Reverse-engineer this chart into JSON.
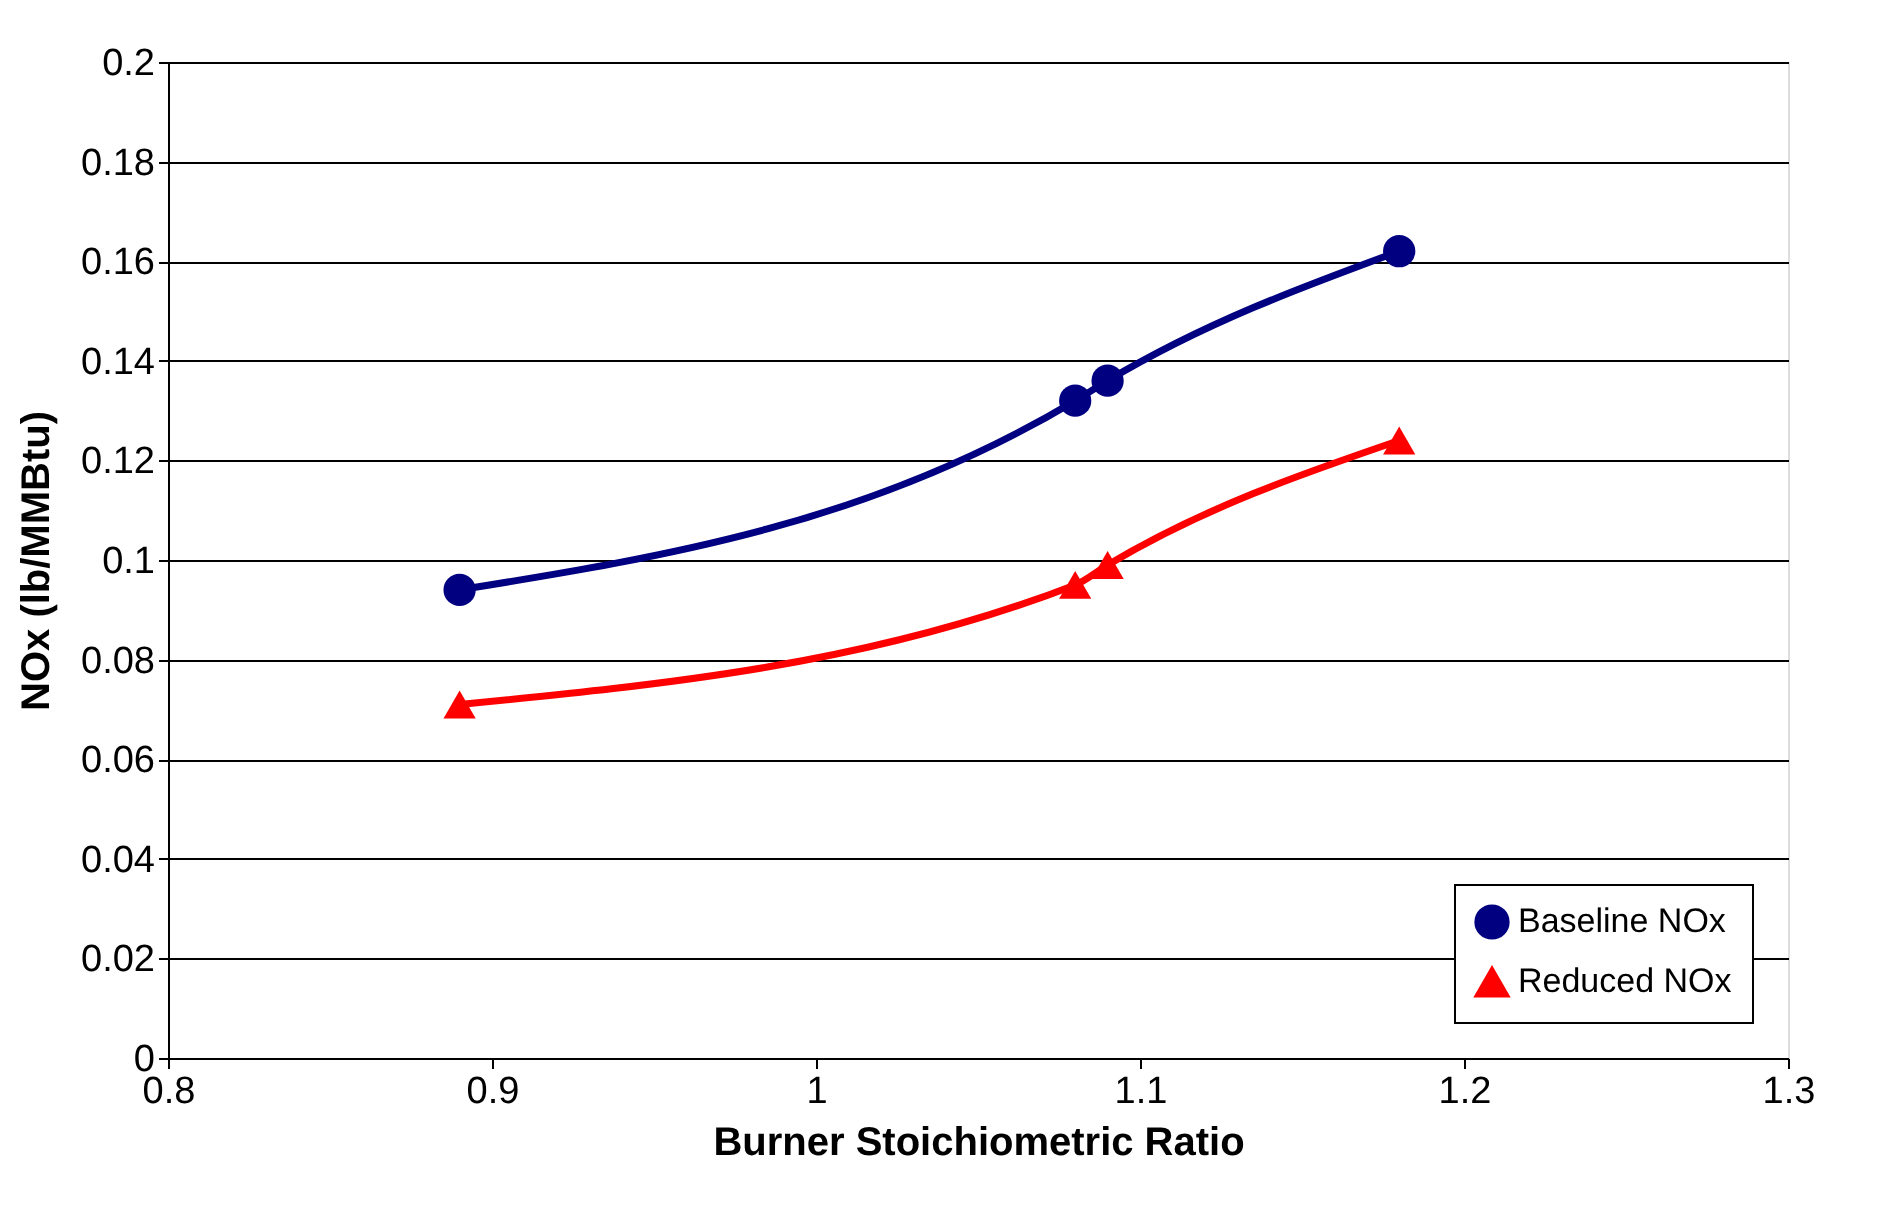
{
  "chart_data": {
    "type": "line",
    "xlabel": "Burner Stoichiometric Ratio",
    "ylabel": "NOx (lb/MMBtu)",
    "series": [
      {
        "name": "Baseline NOx",
        "color": "#000080",
        "marker": "circle",
        "x": [
          0.89,
          1.08,
          1.09,
          1.18
        ],
        "values": [
          0.094,
          0.132,
          0.136,
          0.162
        ]
      },
      {
        "name": "Reduced NOx",
        "color": "#ff0000",
        "marker": "triangle",
        "x": [
          0.89,
          1.08,
          1.09,
          1.18
        ],
        "values": [
          0.071,
          0.095,
          0.099,
          0.124
        ]
      }
    ],
    "xlim": [
      0.8,
      1.3
    ],
    "xticks": [
      0.8,
      0.9,
      1,
      1.1,
      1.2,
      1.3
    ],
    "ylim": [
      0,
      0.2
    ],
    "yticks": [
      0,
      0.02,
      0.04,
      0.06,
      0.08,
      0.1,
      0.12,
      0.14,
      0.16,
      0.18,
      0.2
    ],
    "grid": "y",
    "legend": "bottom right",
    "line_style": "solid"
  }
}
